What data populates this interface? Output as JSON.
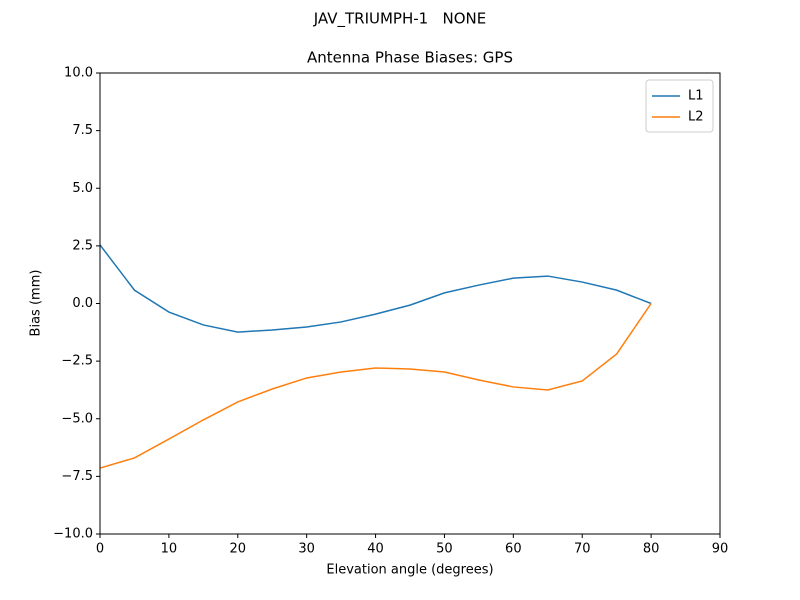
{
  "chart_data": {
    "type": "line",
    "suptitle": "JAV_TRIUMPH-1   NONE",
    "title": "Antenna Phase Biases: GPS",
    "x_label": "Elevation angle (degrees)",
    "y_label": "Bias (mm)",
    "x": [
      0,
      5,
      10,
      15,
      20,
      25,
      30,
      35,
      40,
      45,
      50,
      55,
      60,
      65,
      70,
      75,
      80
    ],
    "series": [
      {
        "name": "L1",
        "color": "#1f77b4",
        "values": [
          2.54,
          0.58,
          -0.37,
          -0.93,
          -1.24,
          -1.15,
          -1.02,
          -0.8,
          -0.46,
          -0.07,
          0.46,
          0.8,
          1.1,
          1.19,
          0.93,
          0.58,
          0.0
        ]
      },
      {
        "name": "L2",
        "color": "#ff7f0e",
        "values": [
          -7.14,
          -6.7,
          -5.88,
          -5.05,
          -4.27,
          -3.71,
          -3.23,
          -2.97,
          -2.8,
          -2.84,
          -2.97,
          -3.32,
          -3.62,
          -3.75,
          -3.36,
          -2.19,
          0.0
        ]
      }
    ],
    "xlim": [
      0,
      90
    ],
    "xticks": [
      0,
      10,
      20,
      30,
      40,
      50,
      60,
      70,
      80,
      90
    ],
    "ylim": [
      -10,
      10
    ],
    "yticks": [
      {
        "value": -10,
        "label": "−10.0"
      },
      {
        "value": -7.5,
        "label": "−7.5"
      },
      {
        "value": -5,
        "label": "−5.0"
      },
      {
        "value": -2.5,
        "label": "−2.5"
      },
      {
        "value": 0,
        "label": "0.0"
      },
      {
        "value": 2.5,
        "label": "2.5"
      },
      {
        "value": 5,
        "label": "5.0"
      },
      {
        "value": 7.5,
        "label": "7.5"
      },
      {
        "value": 10,
        "label": "10.0"
      }
    ],
    "legend": "upper right",
    "grid": false
  }
}
